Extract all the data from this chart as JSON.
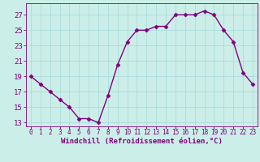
{
  "x": [
    0,
    1,
    2,
    3,
    4,
    5,
    6,
    7,
    8,
    9,
    10,
    11,
    12,
    13,
    14,
    15,
    16,
    17,
    18,
    19,
    20,
    21,
    22,
    23
  ],
  "y": [
    19,
    18,
    17,
    16,
    15,
    13.5,
    13.5,
    13,
    16.5,
    20.5,
    23.5,
    25,
    25,
    25.5,
    25.5,
    27,
    27,
    27,
    27.5,
    27,
    25,
    23.5,
    19.5,
    18
  ],
  "line_color": "#800080",
  "marker": "D",
  "marker_size": 2.5,
  "bg_color": "#cceee8",
  "grid_color": "#aadddd",
  "xlabel": "Windchill (Refroidissement éolien,°C)",
  "xlabel_fontsize": 6.5,
  "yticks": [
    13,
    15,
    17,
    19,
    21,
    23,
    25,
    27
  ],
  "xticks": [
    0,
    1,
    2,
    3,
    4,
    5,
    6,
    7,
    8,
    9,
    10,
    11,
    12,
    13,
    14,
    15,
    16,
    17,
    18,
    19,
    20,
    21,
    22,
    23
  ],
  "ylim": [
    12.5,
    28.5
  ],
  "xlim": [
    -0.5,
    23.5
  ],
  "ytick_fontsize": 6.5,
  "xtick_fontsize": 5.5,
  "line_width": 1.0
}
